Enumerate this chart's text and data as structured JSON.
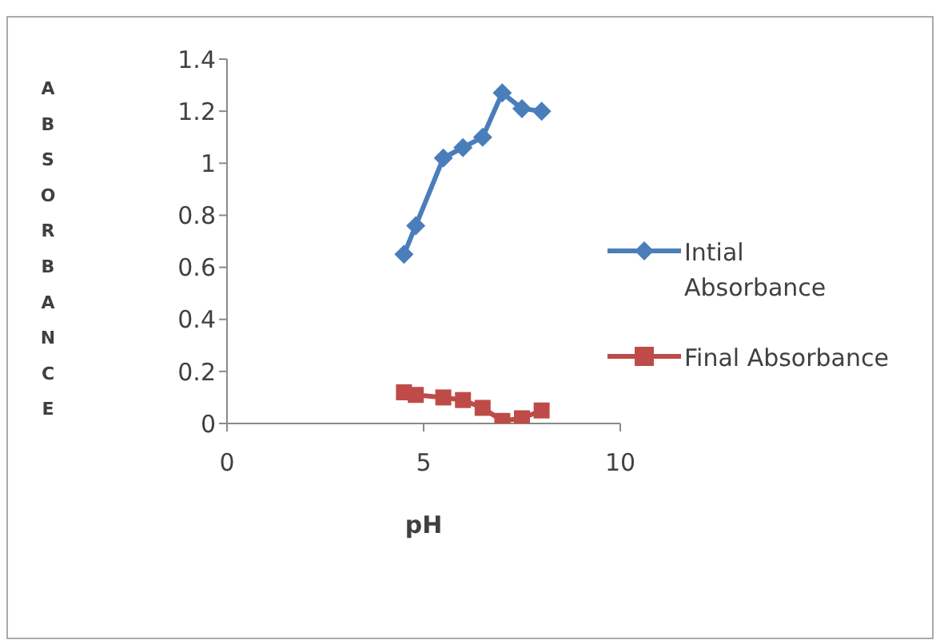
{
  "chart_data": {
    "type": "line",
    "xlabel": "pH",
    "ylabel": "ABSORBANCE",
    "x": [
      4.5,
      4.8,
      5.5,
      6,
      6.5,
      7,
      7.5,
      8
    ],
    "series": [
      {
        "name": "Intial Absorbance",
        "color": "#4a7ebb",
        "marker": "diamond",
        "values": [
          0.65,
          0.76,
          1.02,
          1.06,
          1.1,
          1.27,
          1.21,
          1.2
        ]
      },
      {
        "name": "Final Absorbance",
        "color": "#be4b48",
        "marker": "square",
        "values": [
          0.12,
          0.11,
          0.1,
          0.09,
          0.06,
          0.01,
          0.02,
          0.05
        ]
      }
    ],
    "xlim": [
      0,
      10
    ],
    "xticks": [
      0,
      5,
      10
    ],
    "ylim": [
      0,
      1.4
    ],
    "yticks": [
      0,
      0.2,
      0.4,
      0.6,
      0.8,
      1,
      1.2,
      1.4
    ],
    "grid": false,
    "legend": "right"
  }
}
